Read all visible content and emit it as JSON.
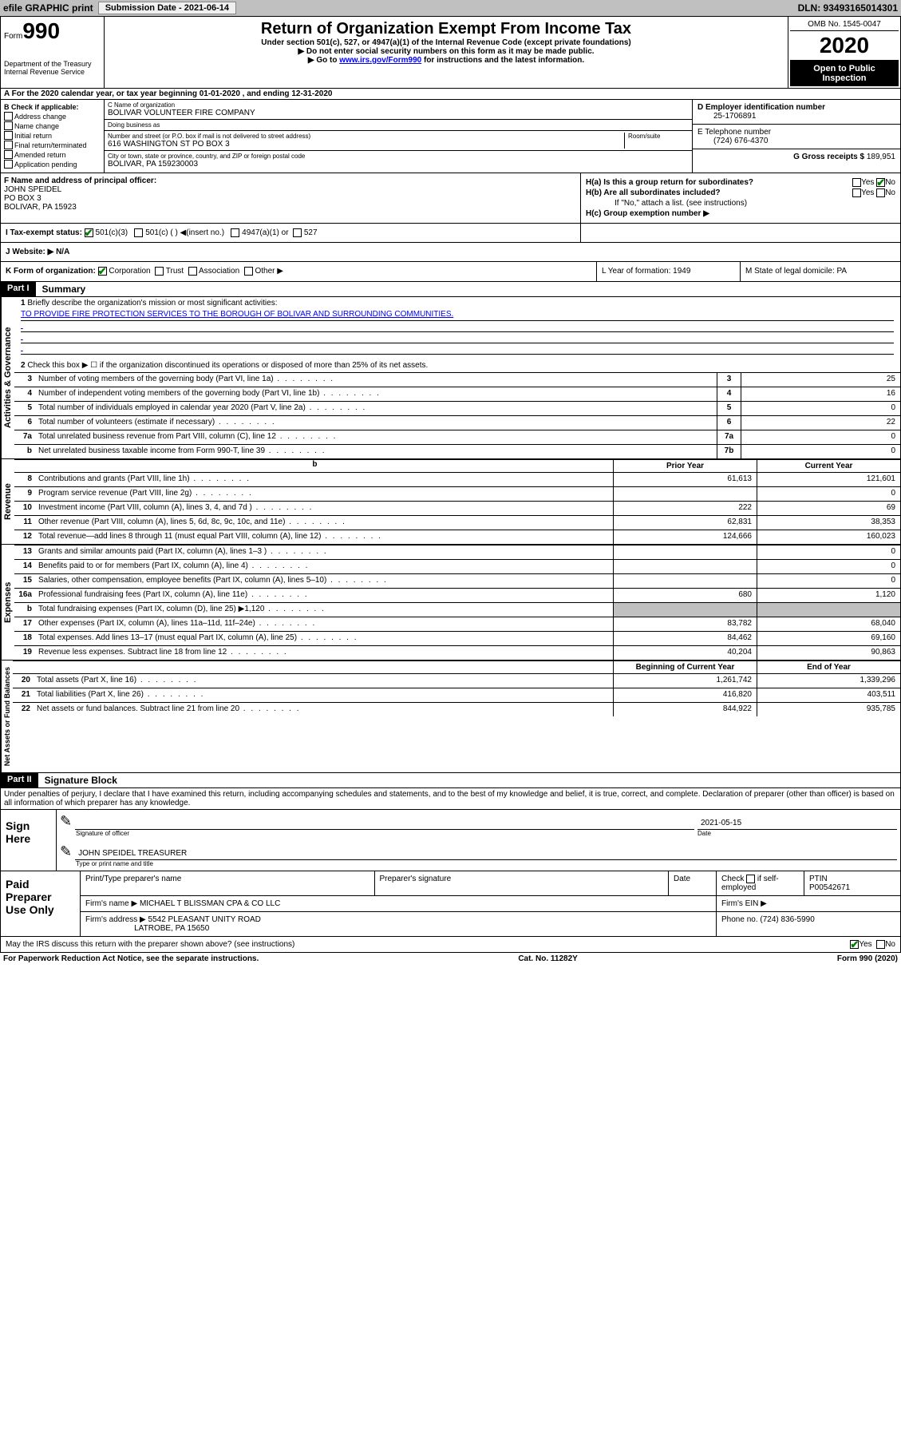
{
  "topbar": {
    "efile": "efile GRAPHIC print",
    "submission_label": "Submission Date - 2021-06-14",
    "dln": "DLN: 93493165014301"
  },
  "header": {
    "form_prefix": "Form",
    "form_num": "990",
    "dept": "Department of the Treasury\nInternal Revenue Service",
    "title": "Return of Organization Exempt From Income Tax",
    "subtitle": "Under section 501(c), 527, or 4947(a)(1) of the Internal Revenue Code (except private foundations)",
    "arrow1": "▶ Do not enter social security numbers on this form as it may be made public.",
    "arrow2_pre": "▶ Go to ",
    "arrow2_link": "www.irs.gov/Form990",
    "arrow2_post": " for instructions and the latest information.",
    "omb": "OMB No. 1545-0047",
    "year": "2020",
    "open": "Open to Public Inspection"
  },
  "rowA": "A For the 2020 calendar year, or tax year beginning 01-01-2020    , and ending 12-31-2020",
  "colB": {
    "header": "B Check if applicable:",
    "opts": [
      "Address change",
      "Name change",
      "Initial return",
      "Final return/terminated",
      "Amended return",
      "Application pending"
    ]
  },
  "colC": {
    "name_label": "C Name of organization",
    "name": "BOLIVAR VOLUNTEER FIRE COMPANY",
    "dba_label": "Doing business as",
    "dba": "",
    "street_label": "Number and street (or P.O. box if mail is not delivered to street address)",
    "street": "616 WASHINGTON ST PO BOX 3",
    "room_label": "Room/suite",
    "city_label": "City or town, state or province, country, and ZIP or foreign postal code",
    "city": "BOLIVAR, PA  159230003"
  },
  "colD": {
    "ein_label": "D Employer identification number",
    "ein": "25-1706891",
    "tel_label": "E Telephone number",
    "tel": "(724) 676-4370",
    "gross_label": "G Gross receipts $",
    "gross": "189,951"
  },
  "colF": {
    "label": "F  Name and address of principal officer:",
    "name": "JOHN SPEIDEL",
    "addr1": "PO BOX 3",
    "addr2": "BOLIVAR, PA  15923"
  },
  "colH": {
    "ha": "H(a)  Is this a group return for subordinates?",
    "hb": "H(b)  Are all subordinates included?",
    "hb_note": "If \"No,\" attach a list. (see instructions)",
    "hc": "H(c)  Group exemption number ▶"
  },
  "rowI": {
    "label": "I    Tax-exempt status:",
    "opt1": "501(c)(3)",
    "opt2": "501(c) (   ) ◀(insert no.)",
    "opt3": "4947(a)(1) or",
    "opt4": "527"
  },
  "rowJ": "J    Website: ▶  N/A",
  "rowK": {
    "k": "K Form of organization:",
    "corp": "Corporation",
    "trust": "Trust",
    "assoc": "Association",
    "other": "Other ▶",
    "l": "L Year of formation: 1949",
    "m": "M State of legal domicile: PA"
  },
  "part1": {
    "label": "Part I",
    "title": "Summary",
    "line1": "Briefly describe the organization's mission or most significant activities:",
    "mission": "TO PROVIDE FIRE PROTECTION SERVICES TO THE BOROUGH OF BOLIVAR AND SURROUNDING COMMUNITIES.",
    "line2": "Check this box ▶ ☐  if the organization discontinued its operations or disposed of more than 25% of its net assets.",
    "rows_gov": [
      {
        "n": "3",
        "d": "Number of voting members of the governing body (Part VI, line 1a)",
        "c": "3",
        "v": "25"
      },
      {
        "n": "4",
        "d": "Number of independent voting members of the governing body (Part VI, line 1b)",
        "c": "4",
        "v": "16"
      },
      {
        "n": "5",
        "d": "Total number of individuals employed in calendar year 2020 (Part V, line 2a)",
        "c": "5",
        "v": "0"
      },
      {
        "n": "6",
        "d": "Total number of volunteers (estimate if necessary)",
        "c": "6",
        "v": "22"
      },
      {
        "n": "7a",
        "d": "Total unrelated business revenue from Part VIII, column (C), line 12",
        "c": "7a",
        "v": "0"
      },
      {
        "n": "b",
        "d": "Net unrelated business taxable income from Form 990-T, line 39",
        "c": "7b",
        "v": "0"
      }
    ],
    "hdr_prior": "Prior Year",
    "hdr_curr": "Current Year",
    "rows_rev": [
      {
        "n": "8",
        "d": "Contributions and grants (Part VIII, line 1h)",
        "p": "61,613",
        "c": "121,601"
      },
      {
        "n": "9",
        "d": "Program service revenue (Part VIII, line 2g)",
        "p": "",
        "c": "0"
      },
      {
        "n": "10",
        "d": "Investment income (Part VIII, column (A), lines 3, 4, and 7d )",
        "p": "222",
        "c": "69"
      },
      {
        "n": "11",
        "d": "Other revenue (Part VIII, column (A), lines 5, 6d, 8c, 9c, 10c, and 11e)",
        "p": "62,831",
        "c": "38,353"
      },
      {
        "n": "12",
        "d": "Total revenue—add lines 8 through 11 (must equal Part VIII, column (A), line 12)",
        "p": "124,666",
        "c": "160,023"
      }
    ],
    "rows_exp": [
      {
        "n": "13",
        "d": "Grants and similar amounts paid (Part IX, column (A), lines 1–3 )",
        "p": "",
        "c": "0"
      },
      {
        "n": "14",
        "d": "Benefits paid to or for members (Part IX, column (A), line 4)",
        "p": "",
        "c": "0"
      },
      {
        "n": "15",
        "d": "Salaries, other compensation, employee benefits (Part IX, column (A), lines 5–10)",
        "p": "",
        "c": "0"
      },
      {
        "n": "16a",
        "d": "Professional fundraising fees (Part IX, column (A), line 11e)",
        "p": "680",
        "c": "1,120"
      },
      {
        "n": "b",
        "d": "Total fundraising expenses (Part IX, column (D), line 25) ▶1,120",
        "p": "GRAY",
        "c": "GRAY"
      },
      {
        "n": "17",
        "d": "Other expenses (Part IX, column (A), lines 11a–11d, 11f–24e)",
        "p": "83,782",
        "c": "68,040"
      },
      {
        "n": "18",
        "d": "Total expenses. Add lines 13–17 (must equal Part IX, column (A), line 25)",
        "p": "84,462",
        "c": "69,160"
      },
      {
        "n": "19",
        "d": "Revenue less expenses. Subtract line 18 from line 12",
        "p": "40,204",
        "c": "90,863"
      }
    ],
    "hdr_beg": "Beginning of Current Year",
    "hdr_end": "End of Year",
    "rows_net": [
      {
        "n": "20",
        "d": "Total assets (Part X, line 16)",
        "p": "1,261,742",
        "c": "1,339,296"
      },
      {
        "n": "21",
        "d": "Total liabilities (Part X, line 26)",
        "p": "416,820",
        "c": "403,511"
      },
      {
        "n": "22",
        "d": "Net assets or fund balances. Subtract line 21 from line 20",
        "p": "844,922",
        "c": "935,785"
      }
    ]
  },
  "side_labels": {
    "gov": "Activities & Governance",
    "rev": "Revenue",
    "exp": "Expenses",
    "net": "Net Assets or Fund Balances"
  },
  "part2": {
    "label": "Part II",
    "title": "Signature Block",
    "penalty": "Under penalties of perjury, I declare that I have examined this return, including accompanying schedules and statements, and to the best of my knowledge and belief, it is true, correct, and complete. Declaration of preparer (other than officer) is based on all information of which preparer has any knowledge."
  },
  "sign": {
    "label": "Sign Here",
    "sig_label": "Signature of officer",
    "date_label": "Date",
    "date": "2021-05-15",
    "name": "JOHN SPEIDEL TREASURER",
    "name_label": "Type or print name and title"
  },
  "prep": {
    "label": "Paid Preparer Use Only",
    "h1": "Print/Type preparer's name",
    "h2": "Preparer's signature",
    "h3": "Date",
    "h4_pre": "Check",
    "h4_post": "if self-employed",
    "ptin_label": "PTIN",
    "ptin": "P00542671",
    "firm_name_label": "Firm's name      ▶",
    "firm_name": "MICHAEL T BLISSMAN CPA & CO LLC",
    "firm_ein_label": "Firm's EIN ▶",
    "firm_addr_label": "Firm's address ▶",
    "firm_addr1": "5542 PLEASANT UNITY ROAD",
    "firm_addr2": "LATROBE, PA  15650",
    "phone_label": "Phone no.",
    "phone": "(724) 836-5990"
  },
  "discuss": "May the IRS discuss this return with the preparer shown above? (see instructions)",
  "footer": {
    "left": "For Paperwork Reduction Act Notice, see the separate instructions.",
    "mid": "Cat. No. 11282Y",
    "right": "Form 990 (2020)"
  },
  "yes": "Yes",
  "no": "No"
}
